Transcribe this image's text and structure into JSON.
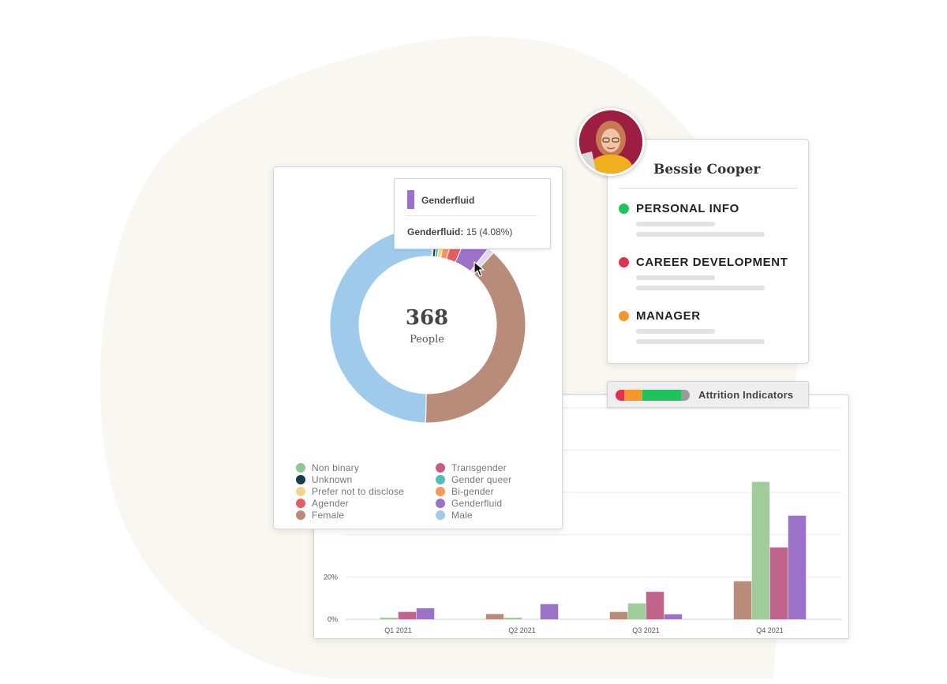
{
  "colors": {
    "blob": "#f9f7f1",
    "non_binary": "#8cc993",
    "transgender": "#c85a8a",
    "unknown": "#163c4d",
    "gender_queer": "#4fbcb5",
    "prefer_not": "#f2d58c",
    "bi_gender": "#f1985a",
    "agender": "#e35d63",
    "genderfluid": "#9b72c7",
    "female": "#b98c7a",
    "male": "#9ecbec"
  },
  "donut": {
    "total": "368",
    "total_label": "People",
    "tooltip": {
      "title": "Genderfluid",
      "label": "Genderfluid:",
      "value": "15 (4.08%)"
    },
    "legend": [
      {
        "label": "Non binary",
        "color": "#8cc993"
      },
      {
        "label": "Transgender",
        "color": "#c85a8a"
      },
      {
        "label": "Unknown",
        "color": "#163c4d"
      },
      {
        "label": "Gender queer",
        "color": "#4fbcb5"
      },
      {
        "label": "Prefer not to disclose",
        "color": "#f2d58c"
      },
      {
        "label": "Bi-gender",
        "color": "#f1985a"
      },
      {
        "label": "Agender",
        "color": "#e35d63"
      },
      {
        "label": "Genderfluid",
        "color": "#9b72c7"
      },
      {
        "label": "Female",
        "color": "#b98c7a"
      },
      {
        "label": "Male",
        "color": "#9ecbec"
      }
    ]
  },
  "chart_data": [
    {
      "type": "pie",
      "title": "",
      "center_value": 368,
      "center_label": "People",
      "slices": [
        {
          "label": "Transgender",
          "value": 1,
          "color": "#c85a8a"
        },
        {
          "label": "Unknown",
          "value": 2,
          "color": "#163c4d"
        },
        {
          "label": "Gender queer",
          "value": 2,
          "color": "#4fbcb5"
        },
        {
          "label": "Prefer not to disclose",
          "value": 3,
          "color": "#f2d58c"
        },
        {
          "label": "Bi-gender",
          "value": 5,
          "color": "#f1985a"
        },
        {
          "label": "Agender",
          "value": 8,
          "color": "#e35d63"
        },
        {
          "label": "Genderfluid",
          "value": 15,
          "color": "#9b72c7"
        },
        {
          "label": "Non binary",
          "value": 4,
          "color": "#e3d6ef"
        },
        {
          "label": "Female",
          "value": 142,
          "color": "#b98c7a"
        },
        {
          "label": "Male",
          "value": 186,
          "color": "#9ecbec"
        }
      ],
      "highlighted": "Genderfluid"
    },
    {
      "type": "bar",
      "title": "",
      "categories": [
        "Q1 2021",
        "Q2 2021",
        "Q3 2021",
        "Q4 2021"
      ],
      "y_ticks": [
        "0%",
        "20%"
      ],
      "ylim": [
        0,
        100
      ],
      "grid": true,
      "series": [
        {
          "values": [
            0,
            2.5,
            3.5,
            18
          ],
          "color": "#b98c7a"
        },
        {
          "values": [
            0.8,
            0.8,
            7.5,
            65
          ],
          "color": "#a0cc9b"
        },
        {
          "values": [
            3.5,
            0,
            13,
            34
          ],
          "color": "#c0648c"
        },
        {
          "values": [
            5.2,
            7.2,
            2.4,
            49
          ],
          "color": "#9b72c7"
        }
      ]
    }
  ],
  "profile": {
    "name": "Bessie Cooper",
    "sections": [
      {
        "label": "PERSONAL INFO",
        "color": "#1fc35e"
      },
      {
        "label": "CAREER DEVELOPMENT",
        "color": "#e0324e"
      },
      {
        "label": "MANAGER",
        "color": "#f7962b"
      }
    ]
  },
  "attrition": {
    "label": "Attrition Indicators",
    "segments": [
      {
        "color": "#e0324e",
        "share": 0.12
      },
      {
        "color": "#f7962b",
        "share": 0.24
      },
      {
        "color": "#1fc35e",
        "share": 0.52
      },
      {
        "color": "#9a9a9a",
        "share": 0.12
      }
    ]
  }
}
